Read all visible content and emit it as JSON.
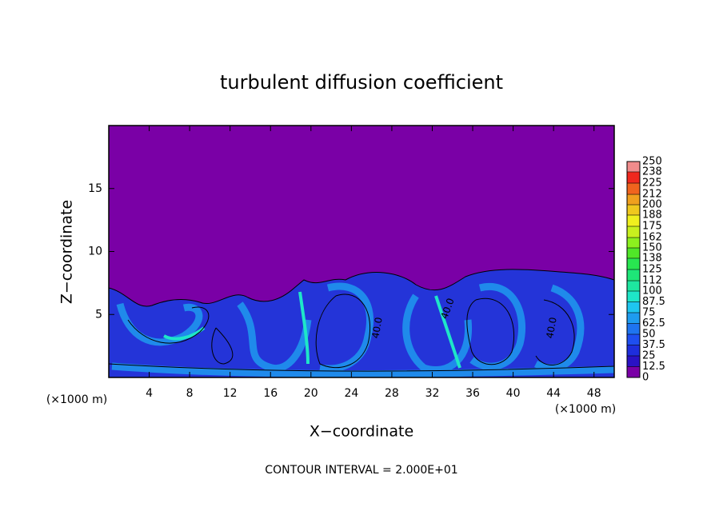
{
  "chart_data": {
    "type": "contour",
    "title": "turbulent diffusion coefficient",
    "xlabel": "X−coordinate",
    "ylabel": "Z−coordinate",
    "x_unit_labels": [
      "(×1000 m)",
      "(×1000 m)"
    ],
    "footer": "CONTOUR INTERVAL = 2.000E+01",
    "xlim": [
      0,
      50
    ],
    "ylim": [
      0,
      20
    ],
    "xticks": [
      4,
      8,
      12,
      16,
      20,
      24,
      28,
      32,
      36,
      40,
      44,
      48
    ],
    "yticks": [
      5,
      10,
      15
    ],
    "colorbar_ticks": [
      0,
      12.5,
      25,
      37.5,
      50,
      62.5,
      75,
      87.5,
      100,
      112,
      125,
      138,
      150,
      162,
      175,
      188,
      200,
      212,
      225,
      238,
      250
    ],
    "colors": [
      "#7a00a6",
      "#2a12c4",
      "#1e2edc",
      "#1e4ef0",
      "#1e74f0",
      "#1e9cf0",
      "#1ec6f0",
      "#1ee6c8",
      "#1ee6a0",
      "#1ee678",
      "#28e650",
      "#50e628",
      "#8cf01e",
      "#c8f01e",
      "#f0f01e",
      "#f0c81e",
      "#f0a01e",
      "#f0641e",
      "#f0281e",
      "#f08c8c"
    ],
    "contour_labels": [
      "40.0",
      "40.0",
      "40.0"
    ]
  }
}
